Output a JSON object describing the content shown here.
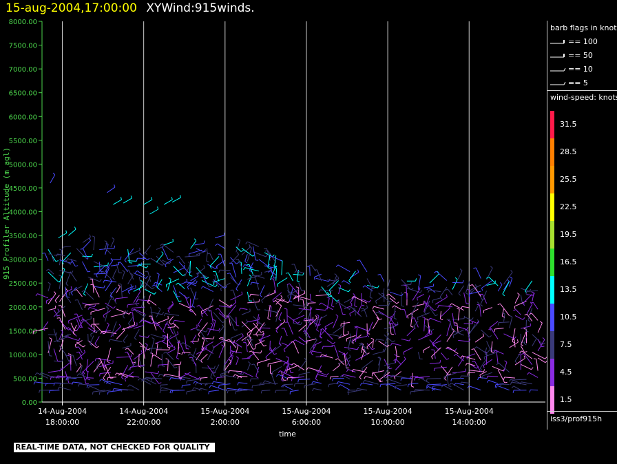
{
  "header": {
    "timestamp": "15-aug-2004,17:00:00",
    "product": "XYWind:915winds."
  },
  "colors": {
    "axis": "#4cd64c",
    "gridline": "#d0d0d0",
    "title_timestamp": "#ffff00"
  },
  "chart_data": {
    "type": "wind-barb",
    "ylabel": "915 Profiler Altitude (m agl)",
    "xlabel": "time",
    "ylim": [
      0,
      8000
    ],
    "y_ticks": [
      "0.00",
      "500.00",
      "1000.00",
      "1500.00",
      "2000.00",
      "2500.00",
      "3000.00",
      "3500.00",
      "4000.00",
      "4500.00",
      "5000.00",
      "5500.00",
      "6000.00",
      "6500.00",
      "7000.00",
      "7500.00",
      "8000.00"
    ],
    "x_ticks": [
      {
        "date": "14-Aug-2004",
        "time": "18:00:00",
        "hour": 18
      },
      {
        "date": "14-Aug-2004",
        "time": "22:00:00",
        "hour": 22
      },
      {
        "date": "15-Aug-2004",
        "time": "2:00:00",
        "hour": 26
      },
      {
        "date": "15-Aug-2004",
        "time": "6:00:00",
        "hour": 30
      },
      {
        "date": "15-Aug-2004",
        "time": "10:00:00",
        "hour": 34
      },
      {
        "date": "15-Aug-2004",
        "time": "14:00:00",
        "hour": 38
      }
    ],
    "xlim_hours": [
      17.0,
      41.75
    ],
    "grid": "vertical lines at each x tick",
    "colorbar": {
      "title": "wind-speed: knots",
      "levels": [
        {
          "label": "31.5",
          "color": "#ff1a4a"
        },
        {
          "label": "28.5",
          "color": "#ff8000"
        },
        {
          "label": "25.5",
          "color": "#ff9900"
        },
        {
          "label": "22.5",
          "color": "#ffff00"
        },
        {
          "label": "19.5",
          "color": "#a8e030"
        },
        {
          "label": "16.5",
          "color": "#2ee02e"
        },
        {
          "label": "13.5",
          "color": "#00ffff"
        },
        {
          "label": "10.5",
          "color": "#4a4aff"
        },
        {
          "label": "7.5",
          "color": "#3a3a7a"
        },
        {
          "label": "4.5",
          "color": "#8a2be2"
        },
        {
          "label": "1.5",
          "color": "#ff88ee"
        }
      ]
    },
    "barb_legend": {
      "title": "barb flags in knots",
      "entries": [
        "== 100",
        "== 50",
        "== 10",
        "== 5"
      ]
    },
    "note": "Wind barbs: dense field of short colored segments from ~200 m to ~3400 m, with sparse upper-level barbs near 4000–4700 m before 00Z."
  },
  "footer": {
    "source": "iss3/prof915h",
    "notice": "REAL-TIME DATA, NOT CHECKED FOR QUALITY"
  }
}
